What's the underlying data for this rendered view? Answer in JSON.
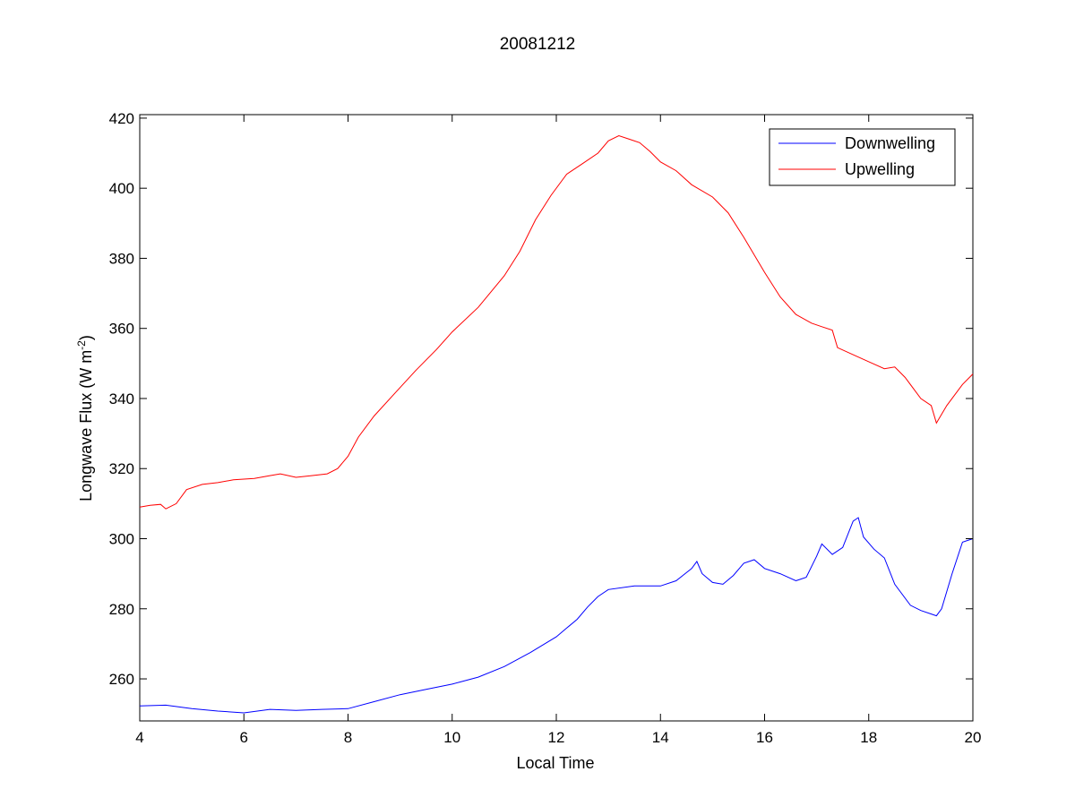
{
  "chart_data": {
    "type": "line",
    "title": "20081212",
    "xlabel": "Local Time",
    "ylabel": "Longwave Flux (W m",
    "ylabel_sup": "-2",
    "ylabel_end": ")",
    "xlim": [
      4,
      20
    ],
    "ylim": [
      248,
      421
    ],
    "xticks": [
      4,
      6,
      8,
      10,
      12,
      14,
      16,
      18,
      20
    ],
    "yticks": [
      260,
      280,
      300,
      320,
      340,
      360,
      380,
      400,
      420
    ],
    "grid": false,
    "legend_position": "top-right",
    "series": [
      {
        "name": "Downwelling",
        "color": "#0000ff",
        "x": [
          4.0,
          4.5,
          5.0,
          5.5,
          6.0,
          6.5,
          7.0,
          7.5,
          8.0,
          8.5,
          9.0,
          9.5,
          10.0,
          10.5,
          11.0,
          11.5,
          12.0,
          12.2,
          12.4,
          12.6,
          12.8,
          13.0,
          13.5,
          14.0,
          14.3,
          14.6,
          14.7,
          14.8,
          15.0,
          15.2,
          15.4,
          15.6,
          15.8,
          16.0,
          16.3,
          16.6,
          16.8,
          17.0,
          17.1,
          17.3,
          17.5,
          17.7,
          17.8,
          17.9,
          18.1,
          18.3,
          18.5,
          18.8,
          19.0,
          19.2,
          19.3,
          19.4,
          19.6,
          19.8,
          20.0
        ],
        "y": [
          252.3,
          252.5,
          251.5,
          250.8,
          250.3,
          251.3,
          251.0,
          251.3,
          251.5,
          253.5,
          255.5,
          257.0,
          258.5,
          260.5,
          263.5,
          267.5,
          272.0,
          274.5,
          277.0,
          280.5,
          283.5,
          285.5,
          286.5,
          286.5,
          288.0,
          291.5,
          293.5,
          290.0,
          287.5,
          287.0,
          289.5,
          293.0,
          294.0,
          291.5,
          290.0,
          288.0,
          289.0,
          295.0,
          298.5,
          295.5,
          297.5,
          305.0,
          306.0,
          300.5,
          297.0,
          294.5,
          287.0,
          281.0,
          279.5,
          278.5,
          278.0,
          280.0,
          290.0,
          299.0,
          300.0
        ]
      },
      {
        "name": "Upwelling",
        "color": "#ff0000",
        "x": [
          4.0,
          4.2,
          4.4,
          4.5,
          4.7,
          4.9,
          5.2,
          5.5,
          5.8,
          6.2,
          6.5,
          6.7,
          7.0,
          7.3,
          7.6,
          7.8,
          8.0,
          8.2,
          8.5,
          8.9,
          9.3,
          9.7,
          10.0,
          10.5,
          11.0,
          11.3,
          11.6,
          11.9,
          12.2,
          12.5,
          12.8,
          13.0,
          13.2,
          13.4,
          13.6,
          13.8,
          14.0,
          14.3,
          14.6,
          15.0,
          15.3,
          15.6,
          16.0,
          16.3,
          16.6,
          16.9,
          17.1,
          17.3,
          17.4,
          17.7,
          18.0,
          18.3,
          18.5,
          18.7,
          19.0,
          19.2,
          19.3,
          19.5,
          19.8,
          20.0
        ],
        "y": [
          309.0,
          309.5,
          309.8,
          308.5,
          310.0,
          314.0,
          315.5,
          316.0,
          316.8,
          317.2,
          318.0,
          318.5,
          317.5,
          318.0,
          318.5,
          320.0,
          323.5,
          329.0,
          335.0,
          341.5,
          348.0,
          354.0,
          359.0,
          366.0,
          375.0,
          382.0,
          391.0,
          398.0,
          404.0,
          407.0,
          410.0,
          413.5,
          415.0,
          414.0,
          413.0,
          410.5,
          407.5,
          405.0,
          401.0,
          397.5,
          393.0,
          386.0,
          376.0,
          369.0,
          364.0,
          361.5,
          360.5,
          359.5,
          354.5,
          352.5,
          350.5,
          348.5,
          349.0,
          346.0,
          340.0,
          338.0,
          333.0,
          338.0,
          344.0,
          347.0
        ]
      }
    ]
  }
}
